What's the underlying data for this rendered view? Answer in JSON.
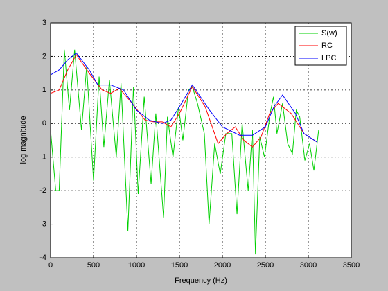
{
  "chart_data": {
    "type": "line",
    "x_label": "Frequency (Hz)",
    "y_label": "log magnitude",
    "xlim": [
      0,
      3500
    ],
    "xticks": [
      0,
      500,
      1000,
      1500,
      2000,
      2500,
      3000,
      3500
    ],
    "ylim": [
      -4,
      3
    ],
    "yticks": [
      -4,
      -3,
      -2,
      -1,
      0,
      1,
      2,
      3
    ],
    "grid": true,
    "legend": "upper right",
    "series": [
      {
        "name": "S(w)",
        "color": "#00d000",
        "x": [
          0,
          60,
          100,
          160,
          220,
          280,
          360,
          420,
          500,
          565,
          620,
          685,
          765,
          820,
          900,
          965,
          1020,
          1090,
          1170,
          1225,
          1315,
          1360,
          1425,
          1490,
          1540,
          1605,
          1650,
          1710,
          1790,
          1845,
          1910,
          1975,
          2040,
          2110,
          2170,
          2230,
          2300,
          2350,
          2385,
          2435,
          2490,
          2555,
          2595,
          2635,
          2700,
          2760,
          2815,
          2860,
          2900,
          2960,
          3015,
          3065,
          3120
        ],
        "values": [
          -0.2,
          -2.0,
          -2.0,
          2.2,
          0.4,
          2.2,
          -0.2,
          1.7,
          -1.7,
          1.4,
          -0.7,
          1.3,
          -1.0,
          1.2,
          -3.2,
          1.1,
          -2.1,
          0.8,
          -1.8,
          0.3,
          -2.8,
          0.2,
          -1.0,
          0.5,
          -0.5,
          1.0,
          1.1,
          0.6,
          -0.3,
          -3.0,
          -0.6,
          -1.5,
          -0.3,
          -0.3,
          -2.7,
          0,
          -2.0,
          -0.2,
          -3.9,
          -0.4,
          -1.0,
          0.3,
          0.8,
          -0.3,
          0.6,
          -0.6,
          -0.9,
          0.4,
          0.2,
          -1.1,
          -0.6,
          -1.4,
          -0.2
        ]
      },
      {
        "name": "RC",
        "color": "#ff0000",
        "x": [
          0,
          100,
          200,
          300,
          450,
          600,
          700,
          800,
          950,
          1100,
          1200,
          1300,
          1400,
          1500,
          1650,
          1800,
          1950,
          2050,
          2150,
          2250,
          2350,
          2450,
          2550,
          2650,
          2800,
          2950,
          3100
        ],
        "values": [
          0.9,
          1.0,
          1.6,
          2.05,
          1.5,
          1.0,
          0.9,
          1.05,
          0.6,
          0.1,
          0.05,
          0.05,
          -0.1,
          0.3,
          1.1,
          0.5,
          -0.6,
          -0.3,
          -0.1,
          -0.5,
          -0.7,
          -0.4,
          0.3,
          0.6,
          0.3,
          -0.3,
          -0.55
        ]
      },
      {
        "name": "LPC",
        "color": "#0000ff",
        "x": [
          0,
          100,
          200,
          300,
          450,
          550,
          700,
          850,
          1000,
          1150,
          1300,
          1400,
          1500,
          1650,
          1850,
          2000,
          2200,
          2350,
          2500,
          2600,
          2700,
          2850,
          2950,
          3100
        ],
        "values": [
          1.45,
          1.6,
          1.9,
          2.1,
          1.6,
          1.15,
          1.15,
          1.0,
          0.4,
          0.1,
          0.0,
          0.1,
          0.5,
          1.15,
          0.4,
          -0.1,
          -0.35,
          -0.35,
          -0.1,
          0.5,
          0.85,
          0.3,
          -0.3,
          -0.55
        ]
      }
    ]
  }
}
